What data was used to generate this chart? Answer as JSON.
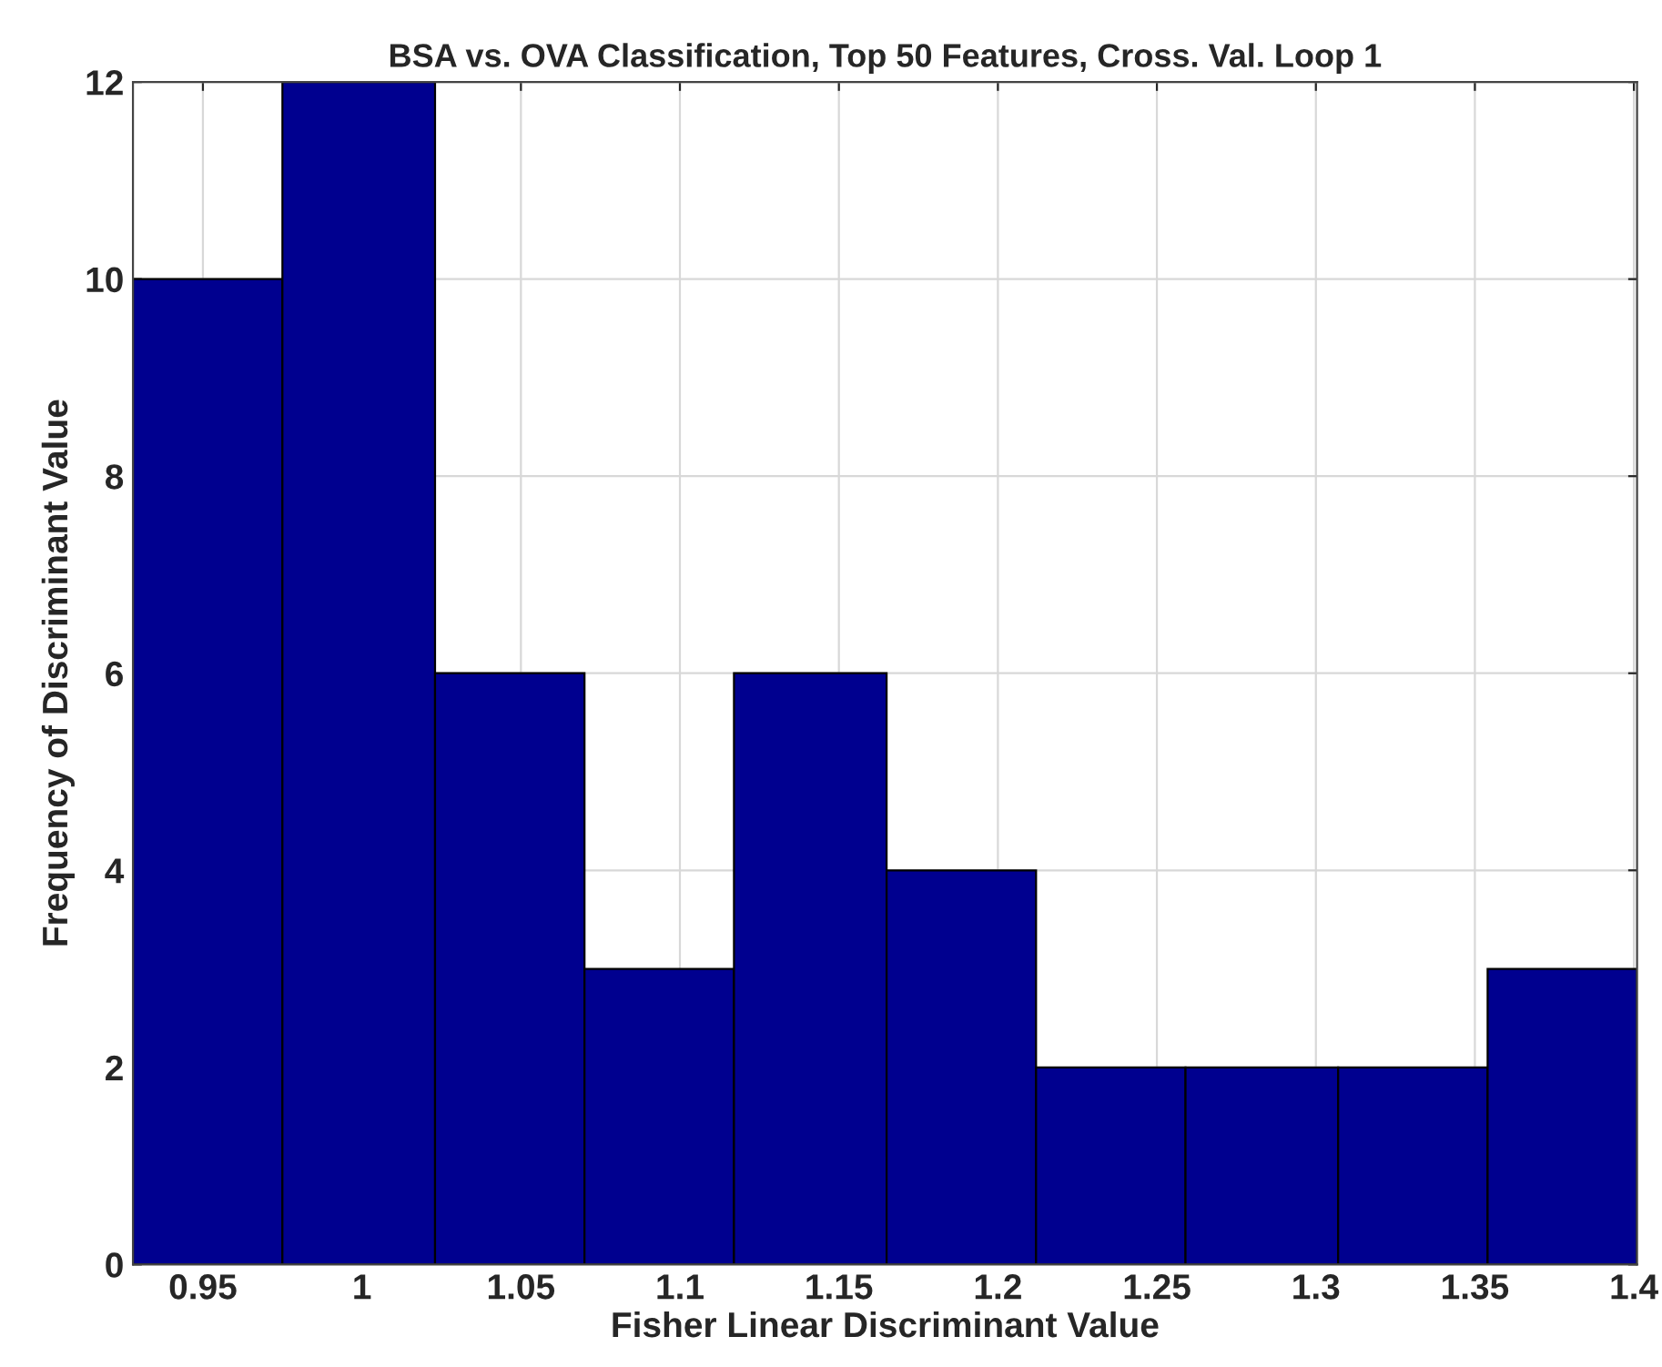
{
  "chart_data": {
    "type": "histogram",
    "title": "BSA vs. OVA Classification, Top 50 Features, Cross. Val. Loop 1",
    "xlabel": "Fisher Linear Discriminant Value",
    "ylabel": "Frequency of Discriminant Value",
    "bins": [
      0.928,
      0.975,
      1.023,
      1.07,
      1.117,
      1.165,
      1.212,
      1.259,
      1.307,
      1.354,
      1.401
    ],
    "values": [
      10,
      12,
      6,
      3,
      6,
      4,
      2,
      2,
      2,
      3
    ],
    "color": "#00008f",
    "xlim": [
      0.928,
      1.401
    ],
    "xticks": [
      0.95,
      1,
      1.05,
      1.1,
      1.15,
      1.2,
      1.25,
      1.3,
      1.35,
      1.4
    ],
    "ylim": [
      0,
      12
    ],
    "yticks": [
      0,
      2,
      4,
      6,
      8,
      10,
      12
    ],
    "grid": true
  }
}
